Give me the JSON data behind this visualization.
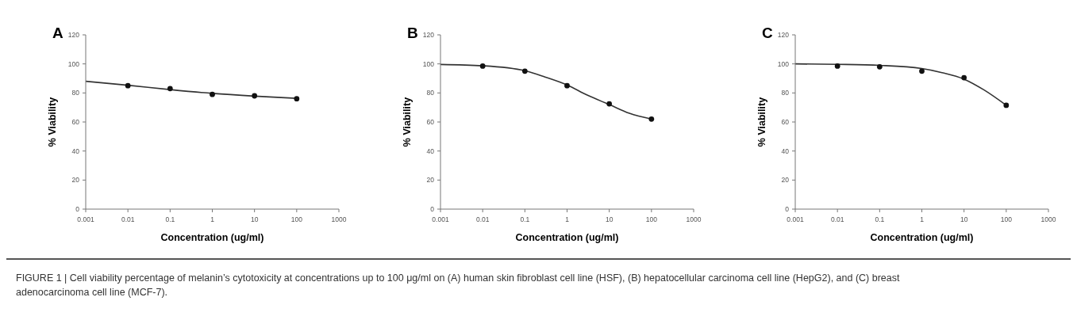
{
  "chart_data": [
    {
      "type": "scatter",
      "title": "A",
      "xlabel": "Concentration (ug/ml)",
      "ylabel": "% Viability",
      "log": "x",
      "xlim": [
        0.001,
        1000
      ],
      "xticks": [
        0.001,
        0.01,
        0.1,
        1,
        10,
        100,
        1000
      ],
      "ylim": [
        0,
        120
      ],
      "yticks": [
        0,
        20,
        40,
        60,
        80,
        100,
        120
      ],
      "series": [
        {
          "type": "line",
          "color": "#333333",
          "marker": "none",
          "x": [
            0.001,
            0.01,
            0.1,
            1,
            10,
            100
          ],
          "values": [
            88,
            85.3,
            82.3,
            79.7,
            77.8,
            76.3
          ]
        },
        {
          "color": "#111111",
          "marker": "circle",
          "x": [
            0.01,
            0.1,
            1,
            10,
            100
          ],
          "values": [
            85,
            83,
            79,
            78,
            76
          ]
        }
      ],
      "annotations": [
        "FIGURE 1 | Cell viability percentage of melanin’s cytotoxicity at concentrations up to 100 μg/ml on (A) human skin fibroblast cell line (HSF), (B) hepatocellular carcinoma cell line (HepG2), and (C) breast adenocarcinoma cell line (MCF-7)."
      ]
    },
    {
      "type": "scatter",
      "title": "B",
      "xlabel": "Concentration (ug/ml)",
      "ylabel": "% Viability",
      "log": "x",
      "xlim": [
        0.001,
        1000
      ],
      "xticks": [
        0.001,
        0.01,
        0.1,
        1,
        10,
        100,
        1000
      ],
      "ylim": [
        0,
        120
      ],
      "yticks": [
        0,
        20,
        40,
        60,
        80,
        100,
        120
      ],
      "series": [
        {
          "type": "line",
          "color": "#333333",
          "marker": "none",
          "x": [
            0.001,
            0.01,
            0.1,
            0.3,
            1,
            3,
            10,
            30,
            100
          ],
          "values": [
            99.6,
            98.7,
            95.3,
            91,
            85.5,
            78.5,
            72,
            66,
            62
          ]
        },
        {
          "color": "#111111",
          "marker": "circle",
          "x": [
            0.01,
            0.1,
            1,
            10,
            100
          ],
          "values": [
            98.5,
            95,
            85,
            72.5,
            62
          ]
        }
      ]
    },
    {
      "type": "scatter",
      "title": "C",
      "xlabel": "Concentration (ug/ml)",
      "ylabel": "% Viability",
      "log": "x",
      "xlim": [
        0.001,
        1000
      ],
      "xticks": [
        0.001,
        0.01,
        0.1,
        1,
        10,
        100,
        1000
      ],
      "ylim": [
        0,
        120
      ],
      "yticks": [
        0,
        20,
        40,
        60,
        80,
        100,
        120
      ],
      "series": [
        {
          "type": "line",
          "color": "#333333",
          "marker": "none",
          "x": [
            0.001,
            0.01,
            0.1,
            1,
            3,
            10,
            30,
            100
          ],
          "values": [
            100,
            99.7,
            99,
            96.8,
            94,
            89.5,
            82,
            71.5
          ]
        },
        {
          "color": "#111111",
          "marker": "circle",
          "x": [
            0.01,
            0.1,
            1,
            10,
            100
          ],
          "values": [
            98.5,
            98,
            95,
            90.5,
            71.5
          ]
        }
      ]
    }
  ]
}
